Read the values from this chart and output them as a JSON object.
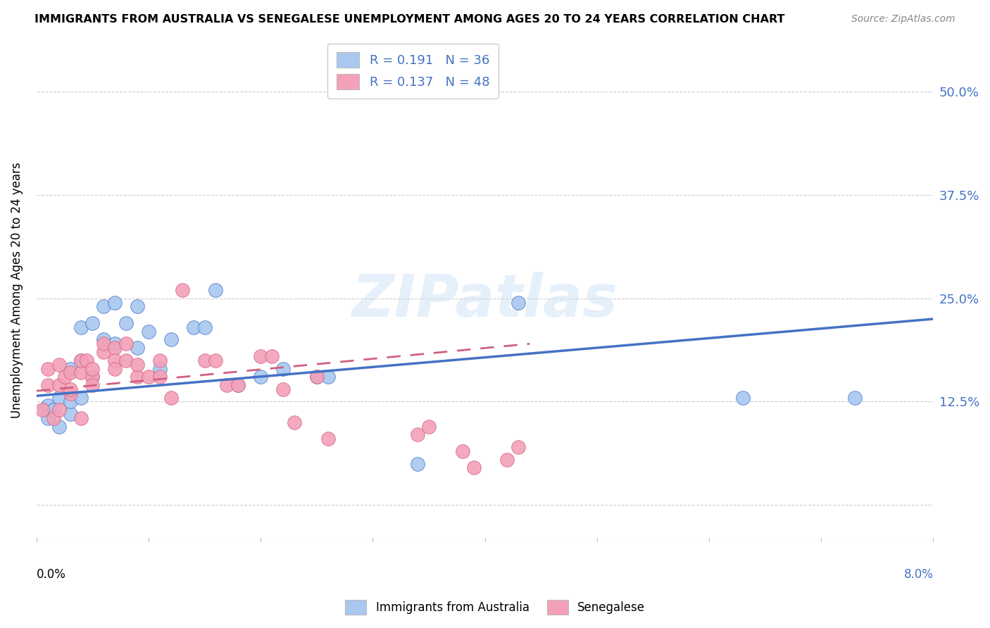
{
  "title": "IMMIGRANTS FROM AUSTRALIA VS SENEGALESE UNEMPLOYMENT AMONG AGES 20 TO 24 YEARS CORRELATION CHART",
  "source": "Source: ZipAtlas.com",
  "ylabel": "Unemployment Among Ages 20 to 24 years",
  "ytick_labels": [
    "",
    "12.5%",
    "25.0%",
    "37.5%",
    "50.0%"
  ],
  "ytick_values": [
    0.0,
    0.125,
    0.25,
    0.375,
    0.5
  ],
  "xlim": [
    0.0,
    0.08
  ],
  "ylim": [
    -0.04,
    0.56
  ],
  "color_blue": "#a8c8f0",
  "color_pink": "#f4a0b8",
  "color_blue_line": "#4472c4",
  "color_pink_line": "#d06080",
  "watermark_text": "ZIPatlas",
  "aus_x": [
    0.0008,
    0.001,
    0.001,
    0.0015,
    0.002,
    0.002,
    0.003,
    0.003,
    0.003,
    0.004,
    0.004,
    0.004,
    0.005,
    0.005,
    0.006,
    0.006,
    0.007,
    0.007,
    0.008,
    0.009,
    0.009,
    0.01,
    0.011,
    0.012,
    0.014,
    0.015,
    0.016,
    0.018,
    0.02,
    0.022,
    0.025,
    0.026,
    0.034,
    0.043,
    0.063,
    0.073
  ],
  "aus_y": [
    0.115,
    0.105,
    0.12,
    0.115,
    0.095,
    0.13,
    0.11,
    0.125,
    0.165,
    0.13,
    0.175,
    0.215,
    0.155,
    0.22,
    0.2,
    0.24,
    0.195,
    0.245,
    0.22,
    0.19,
    0.24,
    0.21,
    0.165,
    0.2,
    0.215,
    0.215,
    0.26,
    0.145,
    0.155,
    0.165,
    0.155,
    0.155,
    0.05,
    0.245,
    0.13,
    0.13
  ],
  "sen_x": [
    0.0005,
    0.001,
    0.001,
    0.0015,
    0.002,
    0.002,
    0.002,
    0.0025,
    0.003,
    0.003,
    0.003,
    0.004,
    0.004,
    0.004,
    0.0045,
    0.005,
    0.005,
    0.005,
    0.006,
    0.006,
    0.007,
    0.007,
    0.007,
    0.008,
    0.008,
    0.009,
    0.009,
    0.01,
    0.011,
    0.011,
    0.012,
    0.013,
    0.015,
    0.016,
    0.017,
    0.018,
    0.02,
    0.021,
    0.022,
    0.023,
    0.025,
    0.026,
    0.034,
    0.035,
    0.038,
    0.039,
    0.042,
    0.043
  ],
  "sen_y": [
    0.115,
    0.145,
    0.165,
    0.105,
    0.17,
    0.145,
    0.115,
    0.155,
    0.135,
    0.14,
    0.16,
    0.105,
    0.16,
    0.175,
    0.175,
    0.155,
    0.145,
    0.165,
    0.185,
    0.195,
    0.19,
    0.175,
    0.165,
    0.195,
    0.175,
    0.155,
    0.17,
    0.155,
    0.175,
    0.155,
    0.13,
    0.26,
    0.175,
    0.175,
    0.145,
    0.145,
    0.18,
    0.18,
    0.14,
    0.1,
    0.155,
    0.08,
    0.085,
    0.095,
    0.065,
    0.045,
    0.055,
    0.07
  ],
  "trend_aus_x0": 0.0,
  "trend_aus_x1": 0.08,
  "trend_aus_y0": 0.132,
  "trend_aus_y1": 0.225,
  "trend_sen_x0": 0.0,
  "trend_sen_x1": 0.044,
  "trend_sen_y0": 0.138,
  "trend_sen_y1": 0.195
}
